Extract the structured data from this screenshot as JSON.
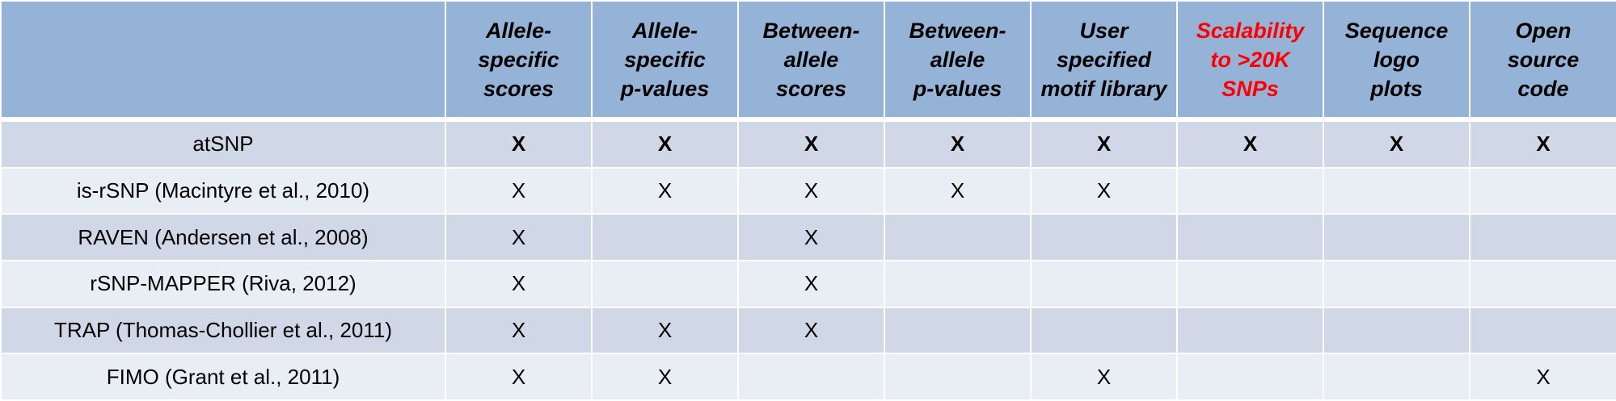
{
  "table": {
    "columns": [
      {
        "lines": [
          "Allele-",
          "specific",
          "scores"
        ],
        "highlight": false
      },
      {
        "lines": [
          "Allele-",
          "specific",
          "p-values"
        ],
        "highlight": false
      },
      {
        "lines": [
          "Between-",
          "allele",
          "scores"
        ],
        "highlight": false
      },
      {
        "lines": [
          "Between-",
          "allele",
          "p-values"
        ],
        "highlight": false
      },
      {
        "lines": [
          "User",
          "specified",
          "motif library"
        ],
        "highlight": false
      },
      {
        "lines": [
          "Scalability",
          "to >20K",
          "SNPs"
        ],
        "highlight": true
      },
      {
        "lines": [
          "Sequence",
          "logo",
          "plots"
        ],
        "highlight": false
      },
      {
        "lines": [
          "Open",
          "source",
          "code"
        ],
        "highlight": false
      }
    ],
    "rows": [
      {
        "tool": "atSNP",
        "marks": [
          "X",
          "X",
          "X",
          "X",
          "X",
          "X",
          "X",
          "X"
        ]
      },
      {
        "tool": "is-rSNP (Macintyre et al., 2010)",
        "marks": [
          "X",
          "X",
          "X",
          "X",
          "X",
          "",
          "",
          ""
        ]
      },
      {
        "tool": "RAVEN (Andersen et al., 2008)",
        "marks": [
          "X",
          "",
          "X",
          "",
          "",
          "",
          "",
          ""
        ]
      },
      {
        "tool": "rSNP-MAPPER (Riva, 2012)",
        "marks": [
          "X",
          "",
          "X",
          "",
          "",
          "",
          "",
          ""
        ]
      },
      {
        "tool": "TRAP (Thomas-Chollier et al., 2011)",
        "marks": [
          "X",
          "X",
          "X",
          "",
          "",
          "",
          "",
          ""
        ]
      },
      {
        "tool": "FIMO (Grant et al., 2011)",
        "marks": [
          "X",
          "X",
          "",
          "",
          "X",
          "",
          "",
          "X"
        ]
      }
    ]
  },
  "colors": {
    "header_bg": "#95b3d7",
    "row_odd_bg": "#d0d8e8",
    "row_even_bg": "#e9edf4",
    "highlight_text": "#ff0000"
  }
}
